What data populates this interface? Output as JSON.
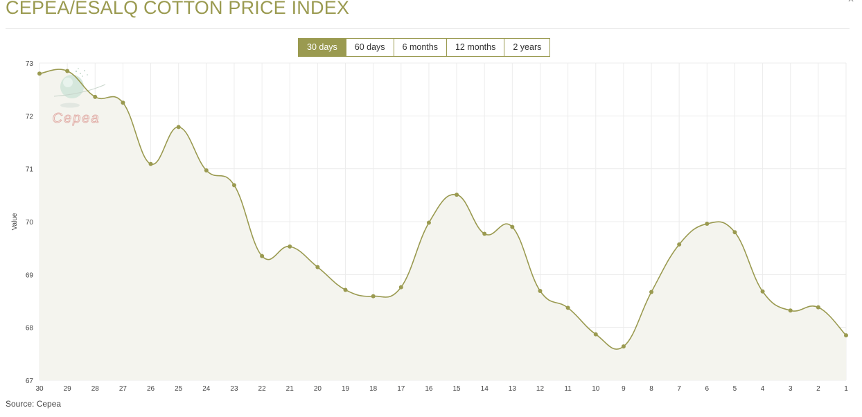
{
  "header": {
    "title": "CEPEA/ESALQ COTTON PRICE INDEX",
    "close_label": "×"
  },
  "range_selector": {
    "buttons": [
      {
        "label": "30 days",
        "active": true
      },
      {
        "label": "60 days",
        "active": false
      },
      {
        "label": "6 months",
        "active": false
      },
      {
        "label": "12 months",
        "active": false
      },
      {
        "label": "2 years",
        "active": false
      }
    ]
  },
  "watermark": {
    "text": "Cepea"
  },
  "footer": {
    "source": "Source: Cepea"
  },
  "colors": {
    "line": "#9a9a50",
    "fill": "#f4f4ee",
    "grid": "#ececec",
    "accent": "#9a9a50",
    "watermark_text": "#e2b0aa"
  },
  "chart_data": {
    "type": "area",
    "ylabel": "Value",
    "xlabel": "",
    "ylim": [
      67,
      73
    ],
    "yticks": [
      67,
      68,
      69,
      70,
      71,
      72,
      73
    ],
    "grid": true,
    "legend": "none",
    "curve": "smooth",
    "categories": [
      "30",
      "29",
      "28",
      "27",
      "26",
      "25",
      "24",
      "23",
      "22",
      "21",
      "20",
      "19",
      "18",
      "17",
      "16",
      "15",
      "14",
      "13",
      "12",
      "11",
      "10",
      "9",
      "8",
      "7",
      "6",
      "5",
      "4",
      "3",
      "2",
      "1"
    ],
    "series": [
      {
        "values": [
          72.8,
          72.85,
          72.36,
          72.25,
          71.09,
          71.79,
          70.97,
          70.69,
          69.35,
          69.53,
          69.14,
          68.71,
          68.59,
          68.76,
          69.98,
          70.51,
          69.77,
          69.9,
          68.69,
          68.37,
          67.87,
          67.64,
          68.67,
          69.57,
          69.96,
          69.8,
          68.68,
          68.32,
          68.38,
          67.85
        ]
      }
    ]
  }
}
